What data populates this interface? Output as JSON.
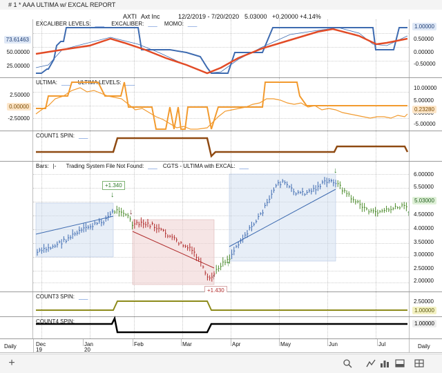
{
  "window": {
    "title": "# 1 * AAA ULTIMA w/ EXCAL REPORT"
  },
  "symbol_bar": {
    "symbol": "AXTI",
    "company": "Axt Inc",
    "date_range": "12/2/2019 - 7/20/2020",
    "last": "5.03000",
    "change": "+0.20000",
    "change_pct": "+4.14%"
  },
  "colors": {
    "blue_line": "#3e6bb0",
    "red_line": "#e24b26",
    "orange": "#f29a2e",
    "brown": "#8f4a12",
    "olive": "#8d8a1a",
    "black": "#000000",
    "up_bar": "#4c8c2c",
    "down_bar": "#b12e2e",
    "box_blue": "#c9d9ee",
    "box_red": "#efcfcf"
  },
  "panel1": {
    "label_a": "EXCALIBER LEVELS:",
    "label_b": "EXCALIBER:",
    "label_c": "MOMO:",
    "left_axis": [
      "73.61463",
      "50.00000",
      "25.00000"
    ],
    "right_axis": [
      "1.00000",
      "0.50000",
      "0.00000",
      "-0.50000"
    ],
    "left_current": "73.61463",
    "right_current": "1.00000"
  },
  "panel2": {
    "label_a": "ULTIMA:",
    "label_b": "ULTIMA LEVELS:",
    "left_axis": [
      "2.50000",
      "0.00000",
      "-2.50000"
    ],
    "right_axis": [
      "10.00000",
      "5.00000",
      "0.00000",
      "-5.00000"
    ],
    "left_current": "0.00000",
    "right_current": "0.23280"
  },
  "panel3": {
    "label": "COUNT1 SPIN:"
  },
  "panel4": {
    "label_a": "Bars:",
    "label_b": "|-",
    "label_c": "Trading System File Not Found:",
    "label_d": "CGTS - ULTIMA with EXCAL:",
    "right_axis": [
      "6.00000",
      "5.50000",
      "4.50000",
      "4.00000",
      "3.50000",
      "3.00000",
      "2.50000",
      "2.00000"
    ],
    "right_current": "5.03000",
    "annotation_top": "+1.340",
    "annotation_bottom": "+1.430"
  },
  "panel5": {
    "label": "COUNT3 SPIN:",
    "right_axis": "2.50000",
    "right_current": "1.00000"
  },
  "panel6": {
    "label": "COUNT4 SPIN:",
    "right_current": "1.00000"
  },
  "time_axis": {
    "period": "Daily",
    "months": [
      "Dec",
      "Jan",
      "Feb",
      "Mar",
      "Apr",
      "May",
      "Jun",
      "Jul"
    ],
    "year_a": "19",
    "year_b": "20",
    "right_period": "Daily"
  },
  "bottom_bar": {
    "add_icon": "plus-icon",
    "icons": [
      "search-icon",
      "line-chart-icon",
      "bar-chart-icon",
      "panel-icon",
      "layout-icon"
    ]
  }
}
